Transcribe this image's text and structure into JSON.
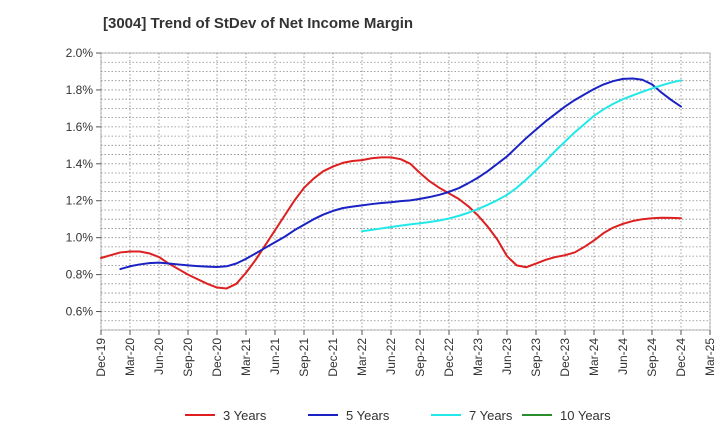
{
  "chart_data": {
    "type": "line",
    "title": "[3004]  Trend of StDev of Net Income Margin",
    "xlabel": "",
    "ylabel": "",
    "x_tick_labels": [
      "Dec-19",
      "Mar-20",
      "Jun-20",
      "Sep-20",
      "Dec-20",
      "Mar-21",
      "Jun-21",
      "Sep-21",
      "Dec-21",
      "Mar-22",
      "Jun-22",
      "Sep-22",
      "Dec-22",
      "Mar-23",
      "Jun-23",
      "Sep-23",
      "Dec-23",
      "Mar-24",
      "Jun-24",
      "Sep-24",
      "Dec-24",
      "Mar-25"
    ],
    "y_tick_labels": [
      "0.6%",
      "0.8%",
      "1.0%",
      "1.2%",
      "1.4%",
      "1.6%",
      "1.8%",
      "2.0%"
    ],
    "y_ticks": [
      0.6,
      0.8,
      1.0,
      1.2,
      1.4,
      1.6,
      1.8,
      2.0
    ],
    "ylim": [
      0.5,
      2.0
    ],
    "grid": true,
    "legend_position": "bottom",
    "series": [
      {
        "name": "3 Years",
        "color": "#dd1f1f",
        "x": [
          "Dec-19",
          "Jan-20",
          "Feb-20",
          "Mar-20",
          "Apr-20",
          "May-20",
          "Jun-20",
          "Jul-20",
          "Aug-20",
          "Sep-20",
          "Oct-20",
          "Nov-20",
          "Dec-20",
          "Jan-21",
          "Feb-21",
          "Mar-21",
          "Apr-21",
          "May-21",
          "Jun-21",
          "Jul-21",
          "Aug-21",
          "Sep-21",
          "Oct-21",
          "Nov-21",
          "Dec-21",
          "Jan-22",
          "Feb-22",
          "Mar-22",
          "Apr-22",
          "May-22",
          "Jun-22",
          "Jul-22",
          "Aug-22",
          "Sep-22",
          "Oct-22",
          "Nov-22",
          "Dec-22",
          "Jan-23",
          "Feb-23",
          "Mar-23",
          "Apr-23",
          "May-23",
          "Jun-23",
          "Jul-23",
          "Aug-23",
          "Sep-23",
          "Oct-23",
          "Nov-23",
          "Dec-23",
          "Jan-24",
          "Feb-24",
          "Mar-24",
          "Apr-24",
          "May-24",
          "Jun-24",
          "Jul-24",
          "Aug-24",
          "Sep-24",
          "Oct-24",
          "Nov-24",
          "Dec-24"
        ],
        "values": [
          0.89,
          0.905,
          0.92,
          0.925,
          0.925,
          0.915,
          0.895,
          0.86,
          0.83,
          0.8,
          0.775,
          0.75,
          0.73,
          0.725,
          0.75,
          0.81,
          0.88,
          0.96,
          1.04,
          1.12,
          1.2,
          1.27,
          1.32,
          1.36,
          1.385,
          1.405,
          1.415,
          1.42,
          1.43,
          1.435,
          1.435,
          1.425,
          1.4,
          1.35,
          1.305,
          1.27,
          1.24,
          1.21,
          1.17,
          1.12,
          1.06,
          0.99,
          0.9,
          0.85,
          0.84,
          0.86,
          0.88,
          0.895,
          0.905,
          0.92,
          0.95,
          0.985,
          1.025,
          1.055,
          1.075,
          1.09,
          1.1,
          1.105,
          1.108,
          1.107,
          1.105
        ]
      },
      {
        "name": "5 Years",
        "color": "#1a22c4",
        "x": [
          "Dec-19",
          "Jan-20",
          "Feb-20",
          "Mar-20",
          "Apr-20",
          "May-20",
          "Jun-20",
          "Jul-20",
          "Aug-20",
          "Sep-20",
          "Oct-20",
          "Nov-20",
          "Dec-20",
          "Jan-21",
          "Feb-21",
          "Mar-21",
          "Apr-21",
          "May-21",
          "Jun-21",
          "Jul-21",
          "Aug-21",
          "Sep-21",
          "Oct-21",
          "Nov-21",
          "Dec-21",
          "Jan-22",
          "Feb-22",
          "Mar-22",
          "Apr-22",
          "May-22",
          "Jun-22",
          "Jul-22",
          "Aug-22",
          "Sep-22",
          "Oct-22",
          "Nov-22",
          "Dec-22",
          "Jan-23",
          "Feb-23",
          "Mar-23",
          "Apr-23",
          "May-23",
          "Jun-23",
          "Jul-23",
          "Aug-23",
          "Sep-23",
          "Oct-23",
          "Nov-23",
          "Dec-23",
          "Jan-24",
          "Feb-24",
          "Mar-24",
          "Apr-24",
          "May-24",
          "Jun-24",
          "Jul-24",
          "Aug-24",
          "Sep-24",
          "Oct-24",
          "Nov-24",
          "Dec-24"
        ],
        "values": [
          null,
          null,
          0.83,
          0.845,
          0.855,
          0.862,
          0.865,
          0.86,
          0.855,
          0.85,
          0.846,
          0.843,
          0.841,
          0.845,
          0.86,
          0.885,
          0.915,
          0.945,
          0.975,
          1.005,
          1.04,
          1.07,
          1.1,
          1.125,
          1.145,
          1.16,
          1.168,
          1.175,
          1.182,
          1.188,
          1.192,
          1.198,
          1.202,
          1.21,
          1.22,
          1.232,
          1.248,
          1.268,
          1.295,
          1.325,
          1.36,
          1.4,
          1.44,
          1.49,
          1.54,
          1.585,
          1.63,
          1.67,
          1.71,
          1.745,
          1.775,
          1.805,
          1.83,
          1.848,
          1.86,
          1.862,
          1.855,
          1.83,
          1.785,
          1.745,
          1.71
        ]
      },
      {
        "name": "7 Years",
        "color": "#22e8e8",
        "x": [
          "Mar-22",
          "Apr-22",
          "May-22",
          "Jun-22",
          "Jul-22",
          "Aug-22",
          "Sep-22",
          "Oct-22",
          "Nov-22",
          "Dec-22",
          "Jan-23",
          "Feb-23",
          "Mar-23",
          "Apr-23",
          "May-23",
          "Jun-23",
          "Jul-23",
          "Aug-23",
          "Sep-23",
          "Oct-23",
          "Nov-23",
          "Dec-23",
          "Jan-24",
          "Feb-24",
          "Mar-24",
          "Apr-24",
          "May-24",
          "Jun-24",
          "Jul-24",
          "Aug-24",
          "Sep-24",
          "Oct-24",
          "Nov-24",
          "Dec-24"
        ],
        "values": [
          1.035,
          1.042,
          1.05,
          1.058,
          1.065,
          1.072,
          1.078,
          1.085,
          1.093,
          1.104,
          1.118,
          1.135,
          1.155,
          1.178,
          1.203,
          1.232,
          1.27,
          1.315,
          1.365,
          1.415,
          1.47,
          1.52,
          1.57,
          1.615,
          1.66,
          1.695,
          1.725,
          1.75,
          1.77,
          1.79,
          1.808,
          1.825,
          1.84,
          1.852
        ]
      },
      {
        "name": "10 Years",
        "color": "#2a8c2a",
        "x": [],
        "values": []
      }
    ]
  }
}
